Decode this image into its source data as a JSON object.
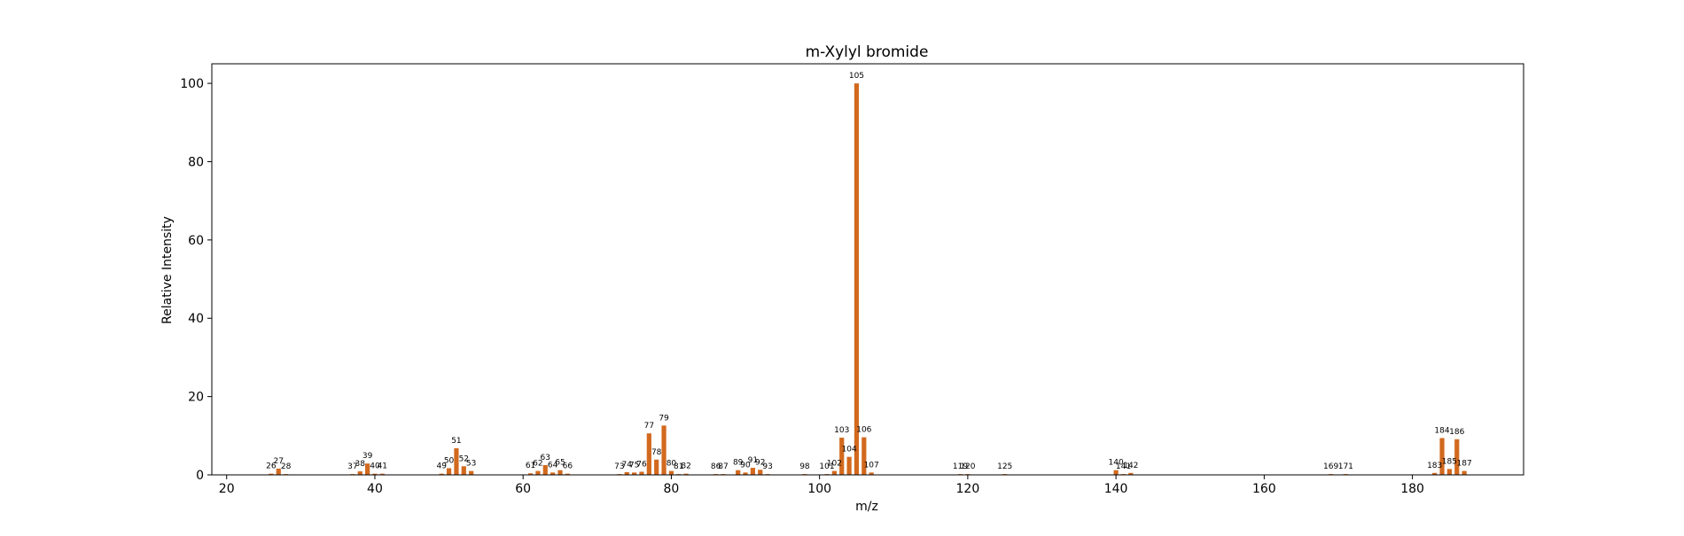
{
  "chart_data": {
    "type": "bar",
    "title": "m-Xylyl bromide",
    "xlabel": "m/z",
    "ylabel": "Relative Intensity",
    "xlim": [
      18,
      195
    ],
    "ylim": [
      0,
      105
    ],
    "xticks": [
      20,
      40,
      60,
      80,
      100,
      120,
      140,
      160,
      180
    ],
    "yticks": [
      0,
      20,
      40,
      60,
      80,
      100
    ],
    "grid": false,
    "bar_color": "#d2691e",
    "points": [
      {
        "x": 26,
        "y": 0.3
      },
      {
        "x": 27,
        "y": 1.6
      },
      {
        "x": 28,
        "y": 0.2
      },
      {
        "x": 37,
        "y": 0.2
      },
      {
        "x": 38,
        "y": 0.9
      },
      {
        "x": 39,
        "y": 2.9
      },
      {
        "x": 40,
        "y": 0.3
      },
      {
        "x": 41,
        "y": 0.3
      },
      {
        "x": 49,
        "y": 0.3
      },
      {
        "x": 50,
        "y": 1.7
      },
      {
        "x": 51,
        "y": 6.8
      },
      {
        "x": 52,
        "y": 2.2
      },
      {
        "x": 53,
        "y": 1.0
      },
      {
        "x": 61,
        "y": 0.4
      },
      {
        "x": 62,
        "y": 1.0
      },
      {
        "x": 63,
        "y": 2.5
      },
      {
        "x": 64,
        "y": 0.6
      },
      {
        "x": 65,
        "y": 1.2
      },
      {
        "x": 66,
        "y": 0.3
      },
      {
        "x": 73,
        "y": 0.2
      },
      {
        "x": 74,
        "y": 0.7
      },
      {
        "x": 75,
        "y": 0.6
      },
      {
        "x": 76,
        "y": 0.8
      },
      {
        "x": 77,
        "y": 10.6
      },
      {
        "x": 78,
        "y": 3.9
      },
      {
        "x": 79,
        "y": 12.6
      },
      {
        "x": 80,
        "y": 1.0
      },
      {
        "x": 81,
        "y": 0.2
      },
      {
        "x": 82,
        "y": 0.3
      },
      {
        "x": 86,
        "y": 0.2
      },
      {
        "x": 87,
        "y": 0.2
      },
      {
        "x": 89,
        "y": 1.2
      },
      {
        "x": 90,
        "y": 0.6
      },
      {
        "x": 91,
        "y": 1.8
      },
      {
        "x": 92,
        "y": 1.3
      },
      {
        "x": 93,
        "y": 0.2
      },
      {
        "x": 98,
        "y": 0.2
      },
      {
        "x": 101,
        "y": 0.2
      },
      {
        "x": 102,
        "y": 1.0
      },
      {
        "x": 103,
        "y": 9.5
      },
      {
        "x": 104,
        "y": 4.6
      },
      {
        "x": 105,
        "y": 100
      },
      {
        "x": 106,
        "y": 9.6
      },
      {
        "x": 107,
        "y": 0.6
      },
      {
        "x": 119,
        "y": 0.2
      },
      {
        "x": 120,
        "y": 0.2
      },
      {
        "x": 125,
        "y": 0.2
      },
      {
        "x": 140,
        "y": 1.2
      },
      {
        "x": 141,
        "y": 0.2
      },
      {
        "x": 142,
        "y": 0.5
      },
      {
        "x": 169,
        "y": 0.2
      },
      {
        "x": 171,
        "y": 0.2
      },
      {
        "x": 183,
        "y": 0.5
      },
      {
        "x": 184,
        "y": 9.4
      },
      {
        "x": 185,
        "y": 1.5
      },
      {
        "x": 186,
        "y": 9.1
      },
      {
        "x": 187,
        "y": 1.0
      }
    ]
  }
}
